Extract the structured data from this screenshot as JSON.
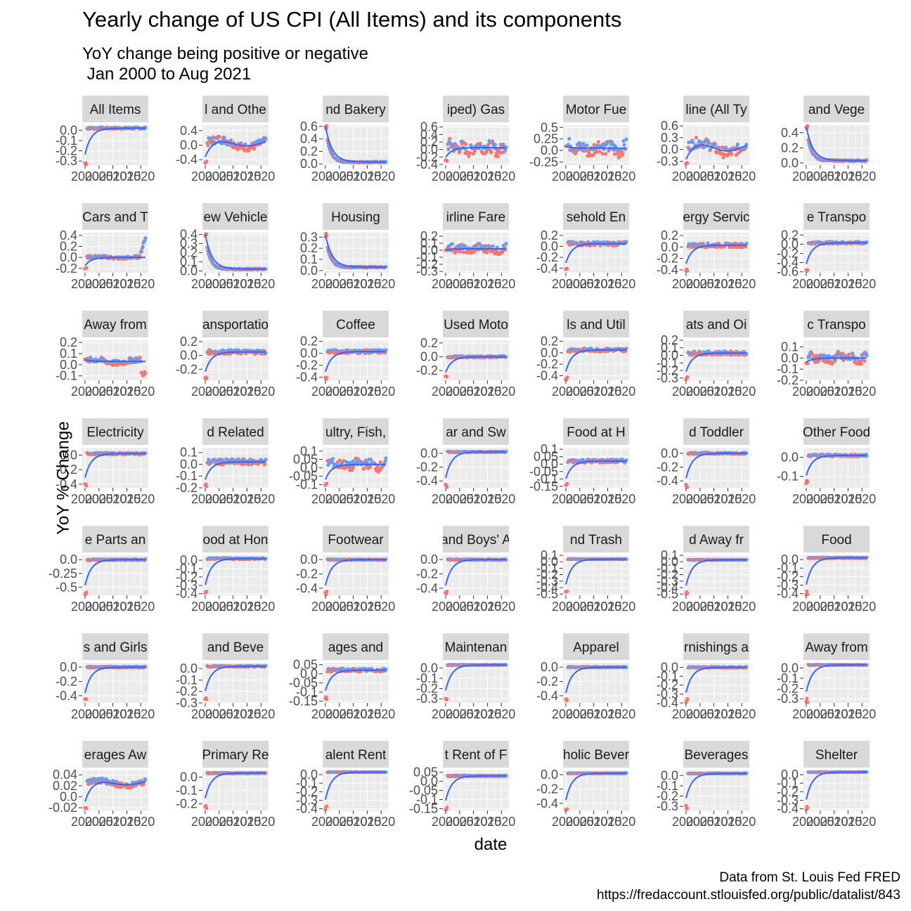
{
  "title": "Yearly change of US CPI (All Items) and its components",
  "subtitle": "YoY change being positive or negative\n Jan 2000 to Aug 2021",
  "caption_line1": "Data from St. Louis Fed FRED",
  "caption_line2": "https://fredaccount.stlouisfed.org/public/datalist/843",
  "xlabel": "date",
  "ylabel": "YoY % Change",
  "colors": {
    "positive": "#619CFF",
    "negative": "#F8766D",
    "zero": "#00BA38",
    "trend": "#3366FF",
    "strip": "#D9D9D9",
    "panel": "#EBEBEB"
  },
  "chart_data": {
    "type": "scatter",
    "layout": "facet_wrap 7 columns x 7 rows",
    "x_range": [
      "2000-01",
      "2021-08"
    ],
    "x_ticks": [
      "2000",
      "2005",
      "2010",
      "2015",
      "2020"
    ],
    "legend": "none",
    "panels": [
      {
        "strip": "All Items",
        "yticks": [
          0.0,
          -0.1,
          -0.2,
          -0.3
        ],
        "ylim": [
          -0.34,
          0.05
        ],
        "baseline": 0.02,
        "noise": 0.015,
        "start": -0.32,
        "shape": "flat"
      },
      {
        "strip": "l and Othe",
        "yticks": [
          0.4,
          0.0,
          -0.4
        ],
        "ylim": [
          -0.55,
          0.55
        ],
        "baseline": 0.05,
        "noise": 0.18,
        "start": -0.45,
        "shape": "hump"
      },
      {
        "strip": "nd Bakery",
        "yticks": [
          0.6,
          0.4,
          0.2,
          0.0
        ],
        "ylim": [
          -0.02,
          0.62
        ],
        "baseline": 0.03,
        "noise": 0.015,
        "start": 0.6,
        "shape": "decay"
      },
      {
        "strip": "iped) Gas",
        "yticks": [
          0.6,
          0.4,
          0.2,
          0.0,
          -0.2,
          -0.4
        ],
        "ylim": [
          -0.42,
          0.65
        ],
        "baseline": 0.05,
        "noise": 0.2,
        "start": -0.3,
        "shape": "volatile"
      },
      {
        "strip": "Motor Fue",
        "yticks": [
          0.5,
          0.25,
          0.0,
          -0.25
        ],
        "ylim": [
          -0.32,
          0.55
        ],
        "baseline": 0.05,
        "noise": 0.18,
        "start": 0.1,
        "shape": "volatile"
      },
      {
        "strip": "line (All Ty",
        "yticks": [
          0.6,
          0.3,
          0.0,
          -0.3
        ],
        "ylim": [
          -0.4,
          0.62
        ],
        "baseline": 0.05,
        "noise": 0.22,
        "start": -0.35,
        "shape": "hump"
      },
      {
        "strip": "and Vege",
        "yticks": [
          0.4,
          0.2,
          0.0
        ],
        "ylim": [
          -0.03,
          0.5
        ],
        "baseline": 0.03,
        "noise": 0.015,
        "start": 0.48,
        "shape": "decay"
      },
      {
        "strip": "Cars and T",
        "yticks": [
          0.4,
          0.2,
          0.0,
          -0.2
        ],
        "ylim": [
          -0.28,
          0.45
        ],
        "baseline": 0.0,
        "noise": 0.04,
        "start": -0.2,
        "shape": "rise"
      },
      {
        "strip": "ew Vehicle",
        "yticks": [
          0.4,
          0.3,
          0.2,
          0.1,
          0.0
        ],
        "ylim": [
          -0.02,
          0.42
        ],
        "baseline": 0.02,
        "noise": 0.012,
        "start": 0.4,
        "shape": "decay"
      },
      {
        "strip": "Housing",
        "yticks": [
          0.3,
          0.2,
          0.1,
          0.0
        ],
        "ylim": [
          -0.02,
          0.34
        ],
        "baseline": 0.03,
        "noise": 0.008,
        "start": 0.32,
        "shape": "decay"
      },
      {
        "strip": "irline Fare",
        "yticks": [
          0.2,
          0.1,
          0.0,
          -0.1,
          -0.2,
          -0.3
        ],
        "ylim": [
          -0.32,
          0.25
        ],
        "baseline": 0.02,
        "noise": 0.07,
        "start": 0.0,
        "shape": "volatile"
      },
      {
        "strip": "sehold En",
        "yticks": [
          0.2,
          0.0,
          -0.2,
          -0.4
        ],
        "ylim": [
          -0.48,
          0.25
        ],
        "baseline": 0.05,
        "noise": 0.06,
        "start": -0.42,
        "shape": "flat"
      },
      {
        "strip": "ergy Servic",
        "yticks": [
          0.2,
          0.0,
          -0.2,
          -0.4
        ],
        "ylim": [
          -0.45,
          0.25
        ],
        "baseline": 0.03,
        "noise": 0.06,
        "start": -0.4,
        "shape": "flat"
      },
      {
        "strip": "e Transpo",
        "yticks": [
          0.2,
          0.0,
          -0.2,
          -0.4,
          -0.6
        ],
        "ylim": [
          -0.62,
          0.25
        ],
        "baseline": 0.03,
        "noise": 0.04,
        "start": -0.58,
        "shape": "flat"
      },
      {
        "strip": "Away from",
        "yticks": [
          0.2,
          0.1,
          0.0,
          -0.1
        ],
        "ylim": [
          -0.14,
          0.22
        ],
        "baseline": 0.03,
        "noise": 0.04,
        "start": 0.05,
        "shape": "dip"
      },
      {
        "strip": "ansportatio",
        "yticks": [
          0.2,
          0.0,
          -0.2
        ],
        "ylim": [
          -0.36,
          0.22
        ],
        "baseline": 0.05,
        "noise": 0.05,
        "start": -0.33,
        "shape": "flat"
      },
      {
        "strip": "Coffee",
        "yticks": [
          0.2,
          0.0,
          -0.2,
          -0.4
        ],
        "ylim": [
          -0.45,
          0.22
        ],
        "baseline": 0.03,
        "noise": 0.05,
        "start": -0.42,
        "shape": "flat"
      },
      {
        "strip": "Used Moto",
        "yticks": [
          0.2,
          0.0,
          -0.2
        ],
        "ylim": [
          -0.34,
          0.24
        ],
        "baseline": 0.0,
        "noise": 0.02,
        "start": -0.3,
        "shape": "flat"
      },
      {
        "strip": "ls and Util",
        "yticks": [
          0.2,
          0.0,
          -0.2,
          -0.4
        ],
        "ylim": [
          -0.48,
          0.22
        ],
        "baseline": 0.05,
        "noise": 0.05,
        "start": -0.45,
        "shape": "flat"
      },
      {
        "strip": "ats and Oi",
        "yticks": [
          0.2,
          0.1,
          0.0,
          -0.1,
          -0.2,
          -0.3
        ],
        "ylim": [
          -0.33,
          0.2
        ],
        "baseline": 0.03,
        "noise": 0.04,
        "start": -0.3,
        "shape": "flat"
      },
      {
        "strip": "c Transpo",
        "yticks": [
          0.1,
          0.0,
          -0.1,
          -0.2
        ],
        "ylim": [
          -0.2,
          0.16
        ],
        "baseline": 0.0,
        "noise": 0.05,
        "start": -0.05,
        "shape": "volatile"
      },
      {
        "strip": "Electricity",
        "yticks": [
          0.0,
          -0.2,
          -0.4
        ],
        "ylim": [
          -0.45,
          0.1
        ],
        "baseline": 0.02,
        "noise": 0.02,
        "start": -0.42,
        "shape": "flat"
      },
      {
        "strip": "d Related",
        "yticks": [
          0.1,
          0.0,
          -0.1,
          -0.2
        ],
        "ylim": [
          -0.2,
          0.14
        ],
        "baseline": 0.02,
        "noise": 0.04,
        "start": -0.18,
        "shape": "flat"
      },
      {
        "strip": "ultry, Fish,",
        "yticks": [
          0.1,
          0.05,
          0.0,
          -0.05,
          -0.1
        ],
        "ylim": [
          -0.12,
          0.12
        ],
        "baseline": 0.02,
        "noise": 0.035,
        "start": -0.1,
        "shape": "volatile"
      },
      {
        "strip": "ar and Sw",
        "yticks": [
          0.0,
          -0.2,
          -0.4
        ],
        "ylim": [
          -0.5,
          0.08
        ],
        "baseline": 0.02,
        "noise": 0.01,
        "start": -0.48,
        "shape": "flat"
      },
      {
        "strip": "Food at H",
        "yticks": [
          0.1,
          0.05,
          0.0,
          -0.05,
          -0.1,
          -0.15
        ],
        "ylim": [
          -0.16,
          0.11
        ],
        "baseline": 0.02,
        "noise": 0.02,
        "start": -0.14,
        "shape": "flat"
      },
      {
        "strip": "d Toddler",
        "yticks": [
          0.0,
          -0.2,
          -0.4
        ],
        "ylim": [
          -0.5,
          0.08
        ],
        "baseline": 0.0,
        "noise": 0.02,
        "start": -0.48,
        "shape": "flat"
      },
      {
        "strip": "Other Food",
        "yticks": [
          0.0,
          -0.1
        ],
        "ylim": [
          -0.16,
          0.05
        ],
        "baseline": 0.01,
        "noise": 0.01,
        "start": -0.13,
        "shape": "flat"
      },
      {
        "strip": "e Parts an",
        "yticks": [
          0.0,
          -0.25,
          -0.5
        ],
        "ylim": [
          -0.65,
          0.08
        ],
        "baseline": 0.0,
        "noise": 0.02,
        "start": -0.62,
        "shape": "flat"
      },
      {
        "strip": "ood at Hon",
        "yticks": [
          0.0,
          -0.1,
          -0.2,
          -0.3,
          -0.4
        ],
        "ylim": [
          -0.42,
          0.06
        ],
        "baseline": 0.02,
        "noise": 0.015,
        "start": -0.4,
        "shape": "flat"
      },
      {
        "strip": "Footwear",
        "yticks": [
          0.0,
          -0.2,
          -0.4
        ],
        "ylim": [
          -0.5,
          0.06
        ],
        "baseline": 0.0,
        "noise": 0.01,
        "start": -0.48,
        "shape": "flat"
      },
      {
        "strip": "and Boys' A",
        "yticks": [
          0.0,
          -0.2,
          -0.4
        ],
        "ylim": [
          -0.5,
          0.06
        ],
        "baseline": 0.0,
        "noise": 0.01,
        "start": -0.48,
        "shape": "flat"
      },
      {
        "strip": "nd Trash",
        "yticks": [
          0.1,
          0.0,
          -0.1,
          -0.2,
          -0.3,
          -0.4,
          -0.5
        ],
        "ylim": [
          -0.52,
          0.1
        ],
        "baseline": 0.04,
        "noise": 0.005,
        "start": -0.48,
        "shape": "flat"
      },
      {
        "strip": "d Away fr",
        "yticks": [
          0.1,
          0.0,
          -0.1,
          -0.2,
          -0.3,
          -0.4,
          -0.5
        ],
        "ylim": [
          -0.52,
          0.1
        ],
        "baseline": 0.03,
        "noise": 0.005,
        "start": -0.5,
        "shape": "flat"
      },
      {
        "strip": "Food",
        "yticks": [
          0.0,
          -0.1,
          -0.2,
          -0.3,
          -0.4
        ],
        "ylim": [
          -0.42,
          0.05
        ],
        "baseline": 0.02,
        "noise": 0.01,
        "start": -0.4,
        "shape": "flat"
      },
      {
        "strip": "s and Girls",
        "yticks": [
          0.0,
          -0.2,
          -0.4
        ],
        "ylim": [
          -0.5,
          0.06
        ],
        "baseline": 0.0,
        "noise": 0.015,
        "start": -0.48,
        "shape": "flat"
      },
      {
        "strip": "and Beve",
        "yticks": [
          0.0,
          -0.1,
          -0.2,
          -0.3
        ],
        "ylim": [
          -0.3,
          0.05
        ],
        "baseline": 0.02,
        "noise": 0.01,
        "start": -0.27,
        "shape": "flat"
      },
      {
        "strip": "ages and",
        "yticks": [
          0.05,
          0.0,
          -0.05,
          -0.1,
          -0.15
        ],
        "ylim": [
          -0.16,
          0.06
        ],
        "baseline": 0.02,
        "noise": 0.015,
        "start": -0.13,
        "shape": "flat"
      },
      {
        "strip": "Maintenan",
        "yticks": [
          0.0,
          -0.1,
          -0.2,
          -0.3
        ],
        "ylim": [
          -0.34,
          0.05
        ],
        "baseline": 0.03,
        "noise": 0.005,
        "start": -0.3,
        "shape": "flat"
      },
      {
        "strip": "Apparel",
        "yticks": [
          0.0,
          -0.2,
          -0.4
        ],
        "ylim": [
          -0.5,
          0.06
        ],
        "baseline": 0.0,
        "noise": 0.01,
        "start": -0.48,
        "shape": "flat"
      },
      {
        "strip": "rnishings a",
        "yticks": [
          0.0,
          -0.1,
          -0.2,
          -0.3,
          -0.4
        ],
        "ylim": [
          -0.4,
          0.05
        ],
        "baseline": 0.0,
        "noise": 0.01,
        "start": -0.38,
        "shape": "flat"
      },
      {
        "strip": "Away from",
        "yticks": [
          0.0,
          -0.1,
          -0.2,
          -0.3
        ],
        "ylim": [
          -0.34,
          0.05
        ],
        "baseline": 0.03,
        "noise": 0.005,
        "start": -0.32,
        "shape": "flat"
      },
      {
        "strip": "erages Aw",
        "yticks": [
          0.04,
          0.02,
          0.0,
          -0.02
        ],
        "ylim": [
          -0.025,
          0.048
        ],
        "baseline": 0.025,
        "noise": 0.008,
        "start": -0.02,
        "shape": "hump"
      },
      {
        "strip": "Primary Re",
        "yticks": [
          0.0,
          -0.1,
          -0.2
        ],
        "ylim": [
          -0.25,
          0.05
        ],
        "baseline": 0.03,
        "noise": 0.005,
        "start": -0.22,
        "shape": "flat"
      },
      {
        "strip": "alent Rent",
        "yticks": [
          0.0,
          -0.1,
          -0.2,
          -0.3,
          -0.4
        ],
        "ylim": [
          -0.42,
          0.05
        ],
        "baseline": 0.03,
        "noise": 0.005,
        "start": -0.4,
        "shape": "flat"
      },
      {
        "strip": "t Rent of F",
        "yticks": [
          0.05,
          0.0,
          -0.05,
          -0.1,
          -0.15
        ],
        "ylim": [
          -0.16,
          0.06
        ],
        "baseline": 0.03,
        "noise": 0.005,
        "start": -0.15,
        "shape": "flat"
      },
      {
        "strip": "holic Bever",
        "yticks": [
          0.0,
          -0.2,
          -0.4
        ],
        "ylim": [
          -0.5,
          0.06
        ],
        "baseline": 0.02,
        "noise": 0.005,
        "start": -0.48,
        "shape": "flat"
      },
      {
        "strip": "Beverages",
        "yticks": [
          0.0,
          -0.1,
          -0.2,
          -0.3
        ],
        "ylim": [
          -0.34,
          0.05
        ],
        "baseline": 0.02,
        "noise": 0.005,
        "start": -0.3,
        "shape": "flat"
      },
      {
        "strip": "Shelter",
        "yticks": [
          0.0,
          -0.1,
          -0.2,
          -0.3,
          -0.4
        ],
        "ylim": [
          -0.42,
          0.05
        ],
        "baseline": 0.03,
        "noise": 0.005,
        "start": -0.4,
        "shape": "flat"
      }
    ]
  }
}
